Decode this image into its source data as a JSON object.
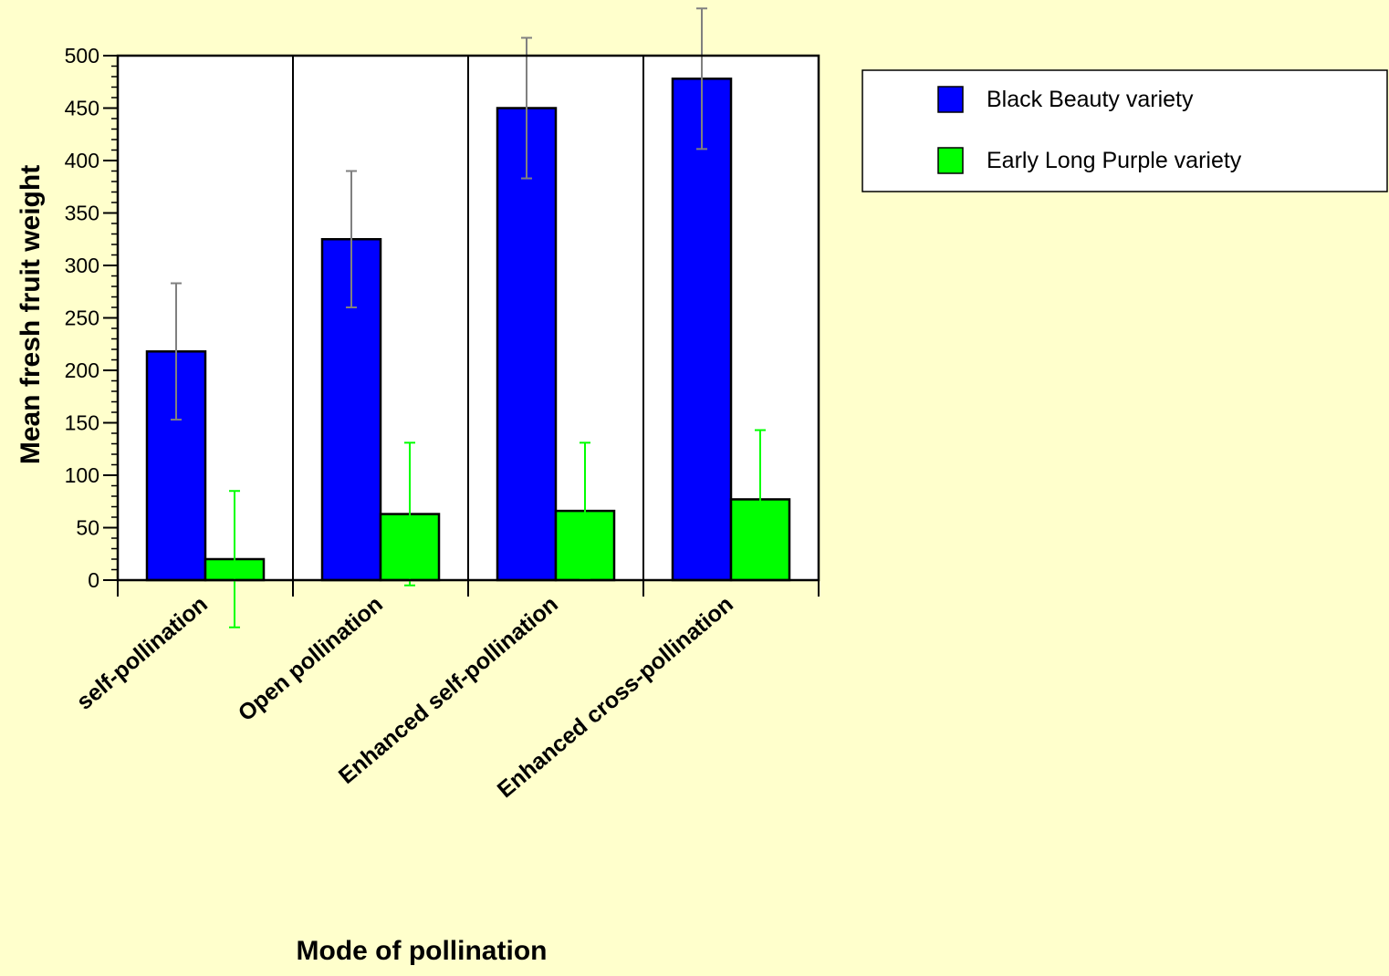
{
  "chart_data": {
    "type": "bar",
    "xlabel": "Mode of pollination",
    "ylabel": "Mean fresh fruit weight",
    "ylim": [
      0,
      500
    ],
    "yticks": [
      0,
      50,
      100,
      150,
      200,
      250,
      300,
      350,
      400,
      450,
      500
    ],
    "categories": [
      "self-pollination",
      "Open pollination",
      "Enhanced self-pollination",
      "Enhanced cross-pollination"
    ],
    "series": [
      {
        "name": "Black Beauty variety",
        "color": "#0000ff",
        "error_color": "#808080",
        "values": [
          218,
          325,
          450,
          478
        ],
        "error": [
          65,
          65,
          67,
          67
        ]
      },
      {
        "name": "Early Long Purple variety",
        "color": "#00ff00",
        "error_color": "#00ff00",
        "values": [
          20,
          63,
          66,
          77
        ],
        "error": [
          65,
          68,
          65,
          66
        ]
      }
    ],
    "legend": {
      "position": "right"
    },
    "grid": false
  }
}
